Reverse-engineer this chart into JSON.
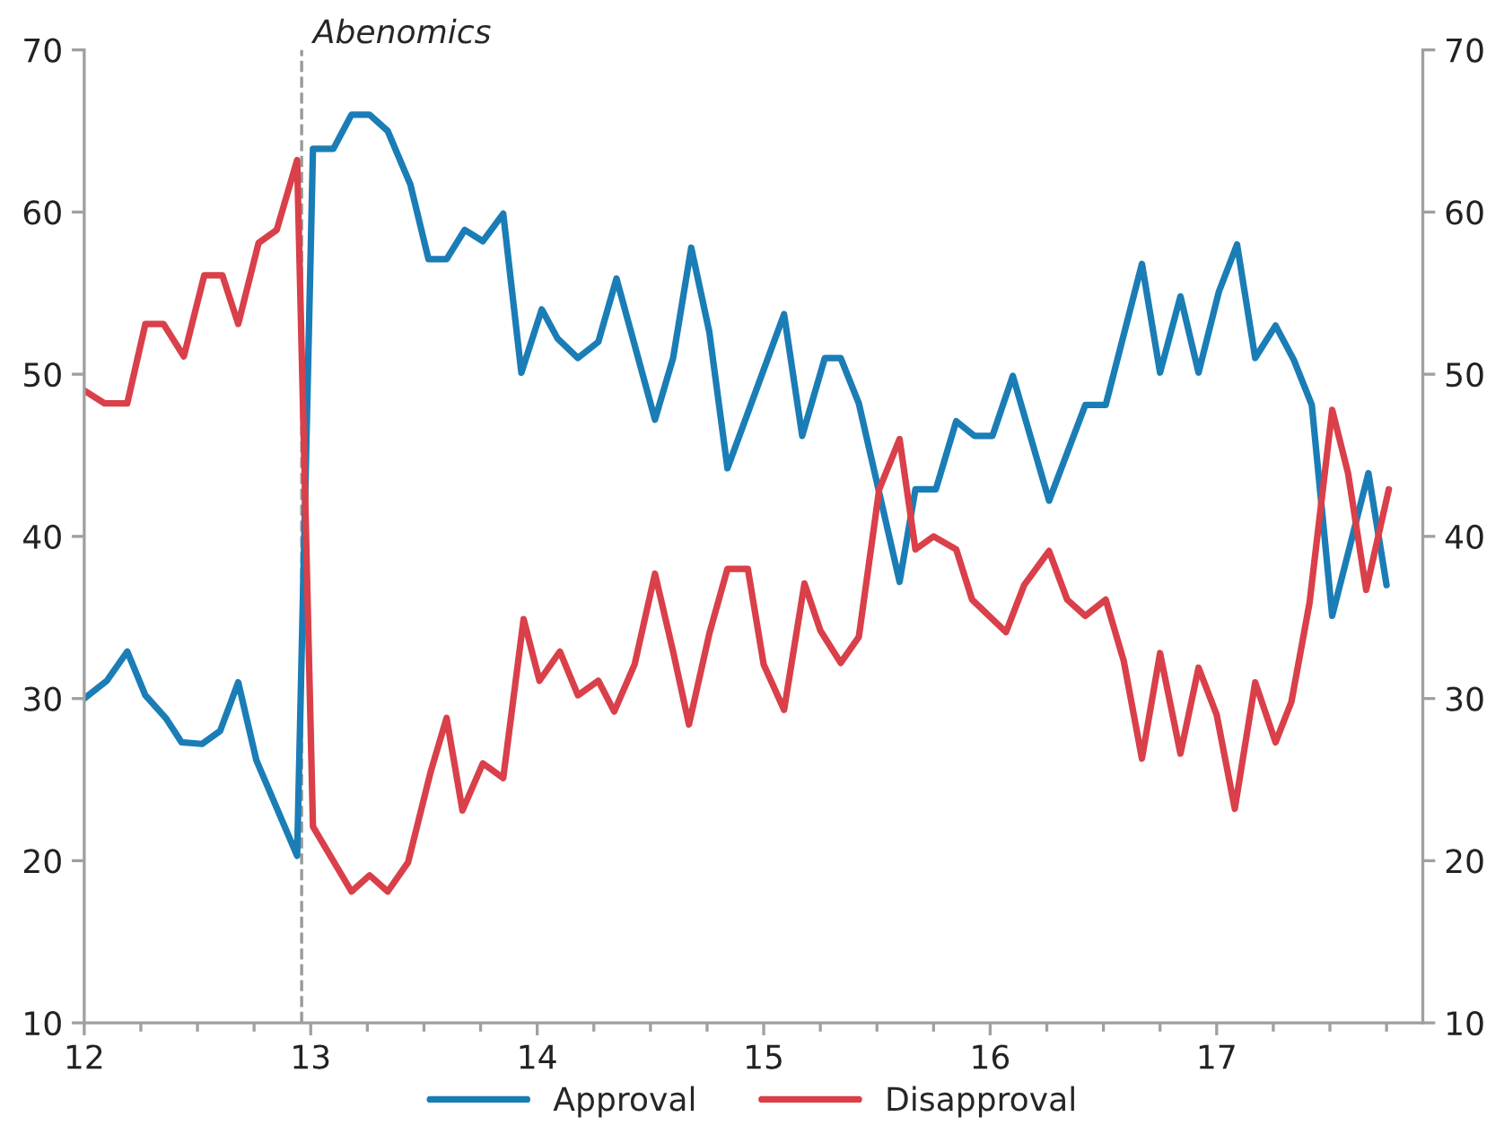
{
  "chart_data": {
    "type": "line",
    "series": [
      {
        "name": "Approval",
        "color": "#1a7db6",
        "x": [
          12.0,
          12.1,
          12.19,
          12.27,
          12.36,
          12.43,
          12.52,
          12.6,
          12.68,
          12.76,
          12.94,
          13.01,
          13.1,
          13.18,
          13.26,
          13.34,
          13.44,
          13.52,
          13.6,
          13.68,
          13.76,
          13.85,
          13.93,
          14.02,
          14.09,
          14.18,
          14.27,
          14.35,
          14.52,
          14.6,
          14.68,
          14.76,
          14.84,
          15.09,
          15.17,
          15.27,
          15.34,
          15.42,
          15.6,
          15.67,
          15.76,
          15.85,
          15.93,
          16.01,
          16.1,
          16.26,
          16.42,
          16.51,
          16.67,
          16.75,
          16.84,
          16.92,
          17.01,
          17.09,
          17.17,
          17.26,
          17.34,
          17.42,
          17.51,
          17.67,
          17.75
        ],
        "values": [
          30,
          31.1,
          32.9,
          30.2,
          28.8,
          27.3,
          27.2,
          28.0,
          31.0,
          26.2,
          20.3,
          63.9,
          63.9,
          66.0,
          66.0,
          65.0,
          61.7,
          57.1,
          57.1,
          58.9,
          58.2,
          59.9,
          50.1,
          54.0,
          52.2,
          51.0,
          52.0,
          55.9,
          47.2,
          51.0,
          57.8,
          52.6,
          44.2,
          53.7,
          46.2,
          51.0,
          51.0,
          48.2,
          37.2,
          42.9,
          42.9,
          47.1,
          46.2,
          46.2,
          49.9,
          42.2,
          48.1,
          48.1,
          56.8,
          50.1,
          54.8,
          50.1,
          55.1,
          58.0,
          51.0,
          53.0,
          50.9,
          48.1,
          35.1,
          43.9,
          37.0
        ]
      },
      {
        "name": "Disapproval",
        "color": "#d9404a",
        "x": [
          12.0,
          12.09,
          12.19,
          12.27,
          12.35,
          12.44,
          12.53,
          12.61,
          12.68,
          12.77,
          12.85,
          12.94,
          13.01,
          13.18,
          13.26,
          13.34,
          13.43,
          13.53,
          13.6,
          13.67,
          13.76,
          13.85,
          13.94,
          14.01,
          14.1,
          14.18,
          14.27,
          14.34,
          14.43,
          14.52,
          14.6,
          14.67,
          14.76,
          14.84,
          14.93,
          15.0,
          15.09,
          15.18,
          15.25,
          15.34,
          15.42,
          15.51,
          15.6,
          15.67,
          15.75,
          15.85,
          15.92,
          16.07,
          16.15,
          16.26,
          16.34,
          16.42,
          16.51,
          16.59,
          16.67,
          16.75,
          16.84,
          16.92,
          17.0,
          17.08,
          17.17,
          17.26,
          17.33,
          17.41,
          17.51,
          17.58,
          17.66,
          17.76
        ],
        "values": [
          49.0,
          48.2,
          48.2,
          53.1,
          53.1,
          51.1,
          56.1,
          56.1,
          53.1,
          58.1,
          58.9,
          63.2,
          22.1,
          18.1,
          19.1,
          18.1,
          19.9,
          25.5,
          28.8,
          23.1,
          26.0,
          25.1,
          34.9,
          31.1,
          32.9,
          30.2,
          31.1,
          29.2,
          32.1,
          37.7,
          32.9,
          28.4,
          34.0,
          38.0,
          38.0,
          32.1,
          29.3,
          37.1,
          34.2,
          32.2,
          33.8,
          42.9,
          46.0,
          39.2,
          40.0,
          39.2,
          36.1,
          34.1,
          37.0,
          39.1,
          36.1,
          35.1,
          36.1,
          32.3,
          26.3,
          32.8,
          26.6,
          31.9,
          29.0,
          23.2,
          31.0,
          27.3,
          29.8,
          35.9,
          47.8,
          43.9,
          36.7,
          42.9
        ]
      }
    ],
    "xlim": [
      12,
      17.91
    ],
    "xticks": [
      12,
      {
        "value": 12.25,
        "label": null
      },
      {
        "value": 12.5,
        "label": null
      },
      {
        "value": 12.75,
        "label": null
      },
      13,
      {
        "value": 13.25,
        "label": null
      },
      {
        "value": 13.5,
        "label": null
      },
      {
        "value": 13.75,
        "label": null
      },
      14,
      {
        "value": 14.25,
        "label": null
      },
      {
        "value": 14.5,
        "label": null
      },
      {
        "value": 14.75,
        "label": null
      },
      15,
      {
        "value": 15.25,
        "label": null
      },
      {
        "value": 15.5,
        "label": null
      },
      {
        "value": 15.75,
        "label": null
      },
      16,
      {
        "value": 16.25,
        "label": null
      },
      {
        "value": 16.5,
        "label": null
      },
      {
        "value": 16.75,
        "label": null
      },
      17,
      {
        "value": 17.25,
        "label": null
      },
      {
        "value": 17.5,
        "label": null
      },
      {
        "value": 17.75,
        "label": null
      }
    ],
    "ylim": [
      10,
      70
    ],
    "yticks": [
      10,
      20,
      30,
      40,
      50,
      60,
      70
    ],
    "y2lim": [
      10,
      70
    ],
    "y2ticks": [
      10,
      20,
      30,
      40,
      50,
      60,
      70
    ],
    "ref_lines": [
      {
        "axis": "x",
        "value": 12.96,
        "label": "Abenomics",
        "color": "#999999",
        "line_style": "dashed"
      }
    ],
    "legend": "bottom",
    "grid": false,
    "line_style": "solid",
    "marker": "none"
  }
}
